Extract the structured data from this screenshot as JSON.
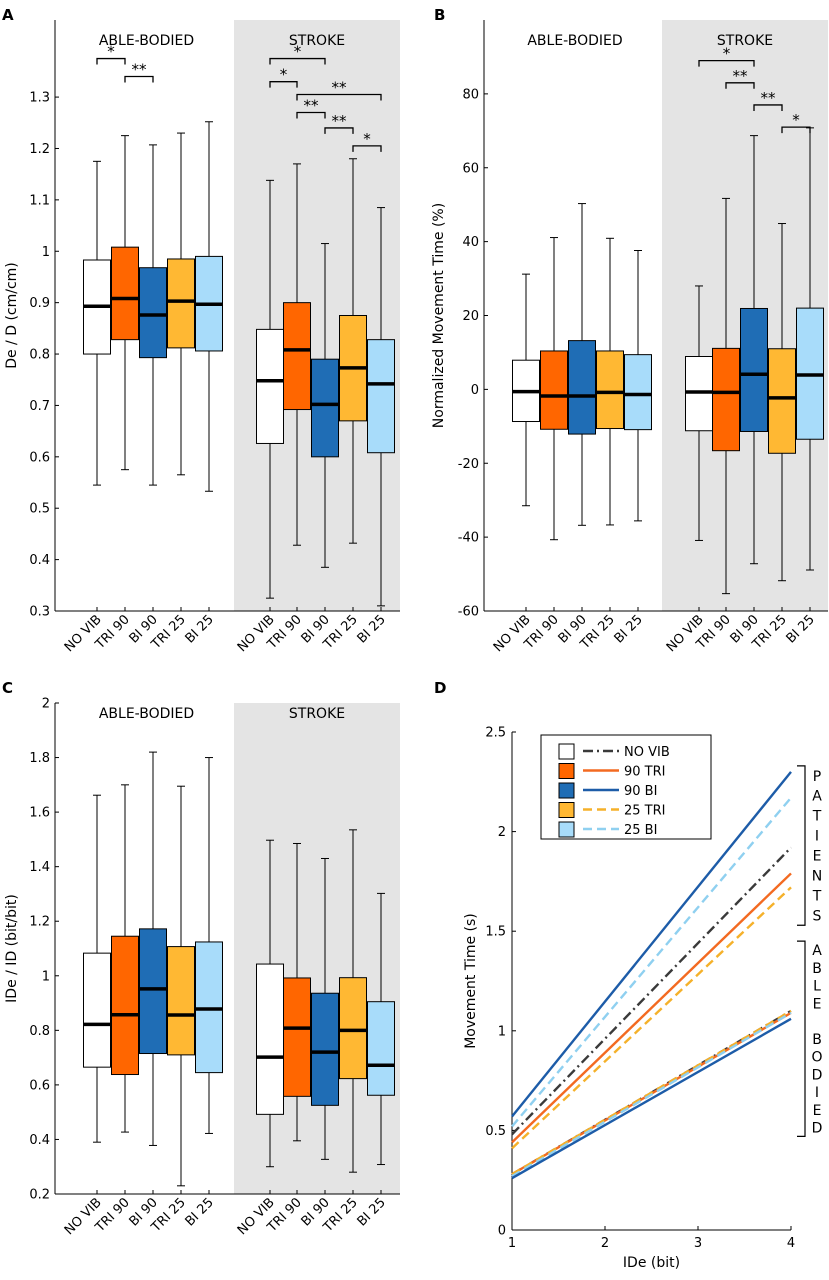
{
  "colors": {
    "NO VIB": "#ffffff",
    "TRI 90": "#ff6600",
    "BI 90": "#1f6db5",
    "TRI 25": "#ffb833",
    "BI 25": "#a8dcfa",
    "line_NO VIB": "#3a3a3a",
    "line_90 TRI": "#f36a21",
    "line_90 BI": "#1d5ca8",
    "line_25 TRI": "#f5b12a",
    "line_25 BI": "#8fd0f0",
    "stroke_band": "#e4e4e4"
  },
  "chart_data": [
    {
      "panel": "A",
      "type": "box",
      "ylabel": "De / D (cm/cm)",
      "ylim": [
        0.3,
        1.45
      ],
      "yticks": [
        0.3,
        0.4,
        0.5,
        0.6,
        0.7,
        0.8,
        0.9,
        1,
        1.1,
        1.2,
        1.3
      ],
      "yticklabels": [
        "0.3",
        "0.4",
        "0.5",
        "0.6",
        "0.7",
        "0.8",
        "0.9",
        "1",
        "1.1",
        "1.2",
        "1.3"
      ],
      "categories": [
        "NO VIB",
        "TRI 90",
        "BI 90",
        "TRI 25",
        "BI 25",
        "NO VIB",
        "TRI 90",
        "BI 90",
        "TRI 25",
        "BI 25"
      ],
      "group_labels": [
        "ABLE-BODIED",
        "STROKE"
      ],
      "boxes": [
        {
          "group": "ABLE-BODIED",
          "cond": "NO VIB",
          "min": 0.545,
          "q1": 0.8,
          "median": 0.893,
          "q3": 0.983,
          "max": 1.175
        },
        {
          "group": "ABLE-BODIED",
          "cond": "TRI 90",
          "min": 0.575,
          "q1": 0.828,
          "median": 0.908,
          "q3": 1.008,
          "max": 1.225
        },
        {
          "group": "ABLE-BODIED",
          "cond": "BI 90",
          "min": 0.545,
          "q1": 0.793,
          "median": 0.876,
          "q3": 0.968,
          "max": 1.207
        },
        {
          "group": "ABLE-BODIED",
          "cond": "TRI 25",
          "min": 0.565,
          "q1": 0.812,
          "median": 0.903,
          "q3": 0.985,
          "max": 1.23
        },
        {
          "group": "ABLE-BODIED",
          "cond": "BI 25",
          "min": 0.533,
          "q1": 0.806,
          "median": 0.897,
          "q3": 0.99,
          "max": 1.252
        },
        {
          "group": "STROKE",
          "cond": "NO VIB",
          "min": 0.325,
          "q1": 0.626,
          "median": 0.748,
          "q3": 0.848,
          "max": 1.138
        },
        {
          "group": "STROKE",
          "cond": "TRI 90",
          "min": 0.428,
          "q1": 0.692,
          "median": 0.808,
          "q3": 0.9,
          "max": 1.17
        },
        {
          "group": "STROKE",
          "cond": "BI 90",
          "min": 0.385,
          "q1": 0.6,
          "median": 0.702,
          "q3": 0.79,
          "max": 1.015
        },
        {
          "group": "STROKE",
          "cond": "TRI 25",
          "min": 0.432,
          "q1": 0.67,
          "median": 0.773,
          "q3": 0.875,
          "max": 1.18
        },
        {
          "group": "STROKE",
          "cond": "BI 25",
          "min": 0.31,
          "q1": 0.608,
          "median": 0.742,
          "q3": 0.828,
          "max": 1.085
        }
      ],
      "significance": [
        {
          "from": 0,
          "to": 1,
          "level": 1.375,
          "label": "*"
        },
        {
          "from": 1,
          "to": 2,
          "level": 1.34,
          "label": "**"
        },
        {
          "from": 5,
          "to": 7,
          "level": 1.375,
          "label": "*"
        },
        {
          "from": 5,
          "to": 6,
          "level": 1.33,
          "label": "*"
        },
        {
          "from": 6,
          "to": 9,
          "level": 1.305,
          "label": "**"
        },
        {
          "from": 6,
          "to": 7,
          "level": 1.27,
          "label": "**"
        },
        {
          "from": 7,
          "to": 8,
          "level": 1.24,
          "label": "**"
        },
        {
          "from": 8,
          "to": 9,
          "level": 1.205,
          "label": "*"
        }
      ]
    },
    {
      "panel": "B",
      "type": "box",
      "ylabel": "Normalized Movement Time (%)",
      "ylim": [
        -60,
        100
      ],
      "yticks": [
        -60,
        -40,
        -20,
        0,
        20,
        40,
        60,
        80
      ],
      "yticklabels": [
        "-60",
        "-40",
        "-20",
        "0",
        "20",
        "40",
        "60",
        "80"
      ],
      "categories": [
        "NO VIB",
        "TRI 90",
        "BI 90",
        "TRI 25",
        "BI 25",
        "NO VIB",
        "TRI 90",
        "BI 90",
        "TRI 25",
        "BI 25"
      ],
      "group_labels": [
        "ABLE-BODIED",
        "STROKE"
      ],
      "boxes": [
        {
          "group": "ABLE-BODIED",
          "cond": "NO VIB",
          "min": -31.5,
          "q1": -8.7,
          "median": -0.6,
          "q3": 7.9,
          "max": 31.2
        },
        {
          "group": "ABLE-BODIED",
          "cond": "TRI 90",
          "min": -40.7,
          "q1": -10.8,
          "median": -1.8,
          "q3": 10.4,
          "max": 41.1
        },
        {
          "group": "ABLE-BODIED",
          "cond": "BI 90",
          "min": -36.8,
          "q1": -12.1,
          "median": -1.8,
          "q3": 13.2,
          "max": 50.3
        },
        {
          "group": "ABLE-BODIED",
          "cond": "TRI 25",
          "min": -36.7,
          "q1": -10.6,
          "median": -0.8,
          "q3": 10.4,
          "max": 40.9
        },
        {
          "group": "ABLE-BODIED",
          "cond": "BI 25",
          "min": -35.6,
          "q1": -10.9,
          "median": -1.4,
          "q3": 9.4,
          "max": 37.6
        },
        {
          "group": "STROKE",
          "cond": "NO VIB",
          "min": -40.9,
          "q1": -11.2,
          "median": -0.7,
          "q3": 8.9,
          "max": 28.0
        },
        {
          "group": "STROKE",
          "cond": "TRI 90",
          "min": -55.3,
          "q1": -16.6,
          "median": -0.8,
          "q3": 11.1,
          "max": 51.7
        },
        {
          "group": "STROKE",
          "cond": "BI 90",
          "min": -47.2,
          "q1": -11.4,
          "median": 4.1,
          "q3": 21.9,
          "max": 68.7
        },
        {
          "group": "STROKE",
          "cond": "TRI 25",
          "min": -51.8,
          "q1": -17.3,
          "median": -2.3,
          "q3": 11.0,
          "max": 44.9
        },
        {
          "group": "STROKE",
          "cond": "BI 25",
          "min": -48.9,
          "q1": -13.5,
          "median": 3.9,
          "q3": 22.0,
          "max": 70.8
        }
      ],
      "significance": [
        {
          "from": 5,
          "to": 7,
          "level": 89,
          "label": "*"
        },
        {
          "from": 6,
          "to": 7,
          "level": 83,
          "label": "**"
        },
        {
          "from": 7,
          "to": 8,
          "level": 77,
          "label": "**"
        },
        {
          "from": 8,
          "to": 9,
          "level": 71,
          "label": "*"
        }
      ]
    },
    {
      "panel": "C",
      "type": "box",
      "ylabel": "IDe / ID (bit/bit)",
      "ylim": [
        0.2,
        2.0
      ],
      "yticks": [
        0.2,
        0.4,
        0.6,
        0.8,
        1,
        1.2,
        1.4,
        1.6,
        1.8,
        2
      ],
      "yticklabels": [
        "0.2",
        "0.4",
        "0.6",
        "0.8",
        "1",
        "1.2",
        "1.4",
        "1.6",
        "1.8",
        "2"
      ],
      "categories": [
        "NO VIB",
        "TRI 90",
        "BI 90",
        "TRI 25",
        "BI 25",
        "NO VIB",
        "TRI 90",
        "BI 90",
        "TRI 25",
        "BI 25"
      ],
      "group_labels": [
        "ABLE-BODIED",
        "STROKE"
      ],
      "boxes": [
        {
          "group": "ABLE-BODIED",
          "cond": "NO VIB",
          "min": 0.39,
          "q1": 0.665,
          "median": 0.822,
          "q3": 1.083,
          "max": 1.662
        },
        {
          "group": "ABLE-BODIED",
          "cond": "TRI 90",
          "min": 0.427,
          "q1": 0.638,
          "median": 0.857,
          "q3": 1.145,
          "max": 1.7
        },
        {
          "group": "ABLE-BODIED",
          "cond": "BI 90",
          "min": 0.378,
          "q1": 0.715,
          "median": 0.952,
          "q3": 1.172,
          "max": 1.82
        },
        {
          "group": "ABLE-BODIED",
          "cond": "TRI 25",
          "min": 0.23,
          "q1": 0.71,
          "median": 0.856,
          "q3": 1.107,
          "max": 1.695
        },
        {
          "group": "ABLE-BODIED",
          "cond": "BI 25",
          "min": 0.422,
          "q1": 0.645,
          "median": 0.878,
          "q3": 1.124,
          "max": 1.8
        },
        {
          "group": "STROKE",
          "cond": "NO VIB",
          "min": 0.3,
          "q1": 0.492,
          "median": 0.702,
          "q3": 1.043,
          "max": 1.497
        },
        {
          "group": "STROKE",
          "cond": "TRI 90",
          "min": 0.395,
          "q1": 0.558,
          "median": 0.808,
          "q3": 0.992,
          "max": 1.485
        },
        {
          "group": "STROKE",
          "cond": "BI 90",
          "min": 0.327,
          "q1": 0.525,
          "median": 0.72,
          "q3": 0.936,
          "max": 1.43
        },
        {
          "group": "STROKE",
          "cond": "TRI 25",
          "min": 0.28,
          "q1": 0.623,
          "median": 0.8,
          "q3": 0.993,
          "max": 1.535
        },
        {
          "group": "STROKE",
          "cond": "BI 25",
          "min": 0.308,
          "q1": 0.562,
          "median": 0.672,
          "q3": 0.905,
          "max": 1.302
        }
      ],
      "significance": []
    },
    {
      "panel": "D",
      "type": "line",
      "xlabel": "IDe (bit)",
      "ylabel": "Movement Time (s)",
      "xlim": [
        1,
        4
      ],
      "ylim": [
        0,
        2.5
      ],
      "xticks": [
        1,
        2,
        3,
        4
      ],
      "xticklabels": [
        "1",
        "2",
        "3",
        "4"
      ],
      "yticks": [
        0,
        0.5,
        1,
        1.5,
        2,
        2.5
      ],
      "yticklabels": [
        "0",
        "0.5",
        "1",
        "1.5",
        "2",
        "2.5"
      ],
      "legend": [
        {
          "cond": "NO VIB",
          "line": "NO VIB",
          "label": "NO VIB",
          "dash": "dashdot"
        },
        {
          "cond": "TRI 90",
          "line": "90 TRI",
          "label": "90 TRI",
          "dash": "solid"
        },
        {
          "cond": "BI 90",
          "line": "90 BI",
          "label": "90 BI",
          "dash": "solid"
        },
        {
          "cond": "TRI 25",
          "line": "25 TRI",
          "label": "25 TRI",
          "dash": "dashed"
        },
        {
          "cond": "BI 25",
          "line": "25 BI",
          "label": "25 BI",
          "dash": "dashed"
        }
      ],
      "series": [
        {
          "group": "patients",
          "name": "NO VIB",
          "x": [
            1,
            4
          ],
          "y": [
            0.48,
            1.92
          ]
        },
        {
          "group": "patients",
          "name": "90 TRI",
          "x": [
            1,
            4
          ],
          "y": [
            0.44,
            1.79
          ]
        },
        {
          "group": "patients",
          "name": "90 BI",
          "x": [
            1,
            4
          ],
          "y": [
            0.57,
            2.3
          ]
        },
        {
          "group": "patients",
          "name": "25 TRI",
          "x": [
            1,
            4
          ],
          "y": [
            0.41,
            1.72
          ]
        },
        {
          "group": "patients",
          "name": "25 BI",
          "x": [
            1,
            4
          ],
          "y": [
            0.52,
            2.17
          ]
        },
        {
          "group": "able-bodied",
          "name": "NO VIB",
          "x": [
            1,
            4
          ],
          "y": [
            0.28,
            1.1
          ]
        },
        {
          "group": "able-bodied",
          "name": "90 TRI",
          "x": [
            1,
            4
          ],
          "y": [
            0.28,
            1.09
          ]
        },
        {
          "group": "able-bodied",
          "name": "25 TRI",
          "x": [
            1,
            4
          ],
          "y": [
            0.28,
            1.1
          ]
        },
        {
          "group": "able-bodied",
          "name": "25 BI",
          "x": [
            1,
            4
          ],
          "y": [
            0.27,
            1.09
          ]
        },
        {
          "group": "able-bodied",
          "name": "90 BI",
          "x": [
            1,
            4
          ],
          "y": [
            0.26,
            1.06
          ]
        }
      ],
      "brackets": [
        {
          "label": "PATIENTS",
          "ylo": 1.53,
          "yhi": 2.33,
          "letters": [
            "P",
            "A",
            "T",
            "I",
            "E",
            "N",
            "T",
            "S"
          ]
        },
        {
          "label": "ABLE BODIED",
          "ylo": 0.47,
          "yhi": 1.45,
          "letters": [
            "A",
            "B",
            "L",
            "E",
            "",
            "B",
            "O",
            "D",
            "I",
            "E",
            "D"
          ]
        }
      ]
    }
  ]
}
